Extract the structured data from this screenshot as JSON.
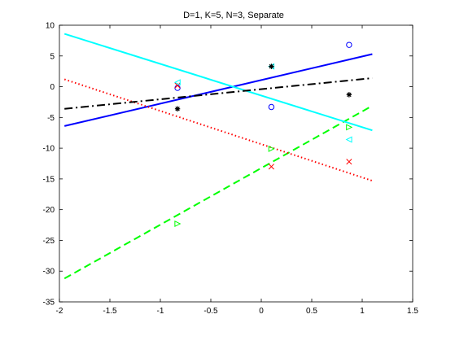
{
  "chart_data": {
    "type": "line",
    "title": "D=1, K=5, N=3, Separate",
    "xlabel": "",
    "ylabel": "",
    "xlim": [
      -2,
      1.5
    ],
    "ylim": [
      -35,
      10
    ],
    "xticks": [
      -2,
      -1.5,
      -1,
      -0.5,
      0,
      0.5,
      1,
      1.5
    ],
    "yticks": [
      -35,
      -30,
      -25,
      -20,
      -15,
      -10,
      -5,
      0,
      5,
      10
    ],
    "grid": false,
    "legend": "none",
    "series": [
      {
        "color": "#0000ff",
        "line_style": "solid",
        "marker": "circle",
        "line": {
          "x": [
            -1.95,
            1.1
          ],
          "y": [
            -6.4,
            5.3
          ]
        },
        "points": [
          {
            "x": -0.83,
            "y": -0.2
          },
          {
            "x": 0.1,
            "y": -3.3
          },
          {
            "x": 0.87,
            "y": 6.8
          }
        ]
      },
      {
        "color": "#00ff00",
        "line_style": "dashed",
        "marker": "triangle-right",
        "line": {
          "x": [
            -1.95,
            1.1
          ],
          "y": [
            -31.2,
            -3.1
          ]
        },
        "points": [
          {
            "x": -0.83,
            "y": -22.3
          },
          {
            "x": 0.1,
            "y": -10.1
          },
          {
            "x": 0.87,
            "y": -6.6
          }
        ]
      },
      {
        "color": "#ff0000",
        "line_style": "dotted",
        "marker": "x",
        "line": {
          "x": [
            -1.95,
            1.1
          ],
          "y": [
            1.2,
            -15.3
          ]
        },
        "points": [
          {
            "x": -0.83,
            "y": 0.2
          },
          {
            "x": 0.1,
            "y": -13.0
          },
          {
            "x": 0.87,
            "y": -12.2
          }
        ]
      },
      {
        "color": "#00ffff",
        "line_style": "solid",
        "marker": "triangle-left",
        "line": {
          "x": [
            -1.95,
            1.1
          ],
          "y": [
            8.6,
            -7.1
          ]
        },
        "points": [
          {
            "x": -0.83,
            "y": 0.7
          },
          {
            "x": 0.1,
            "y": 3.3
          },
          {
            "x": 0.87,
            "y": -8.6
          }
        ]
      },
      {
        "color": "#000000",
        "line_style": "dashdot",
        "marker": "star",
        "line": {
          "x": [
            -1.95,
            1.1
          ],
          "y": [
            -3.6,
            1.4
          ]
        },
        "points": [
          {
            "x": -0.83,
            "y": -3.6
          },
          {
            "x": 0.1,
            "y": 3.3
          },
          {
            "x": 0.87,
            "y": -1.3
          }
        ]
      }
    ]
  }
}
